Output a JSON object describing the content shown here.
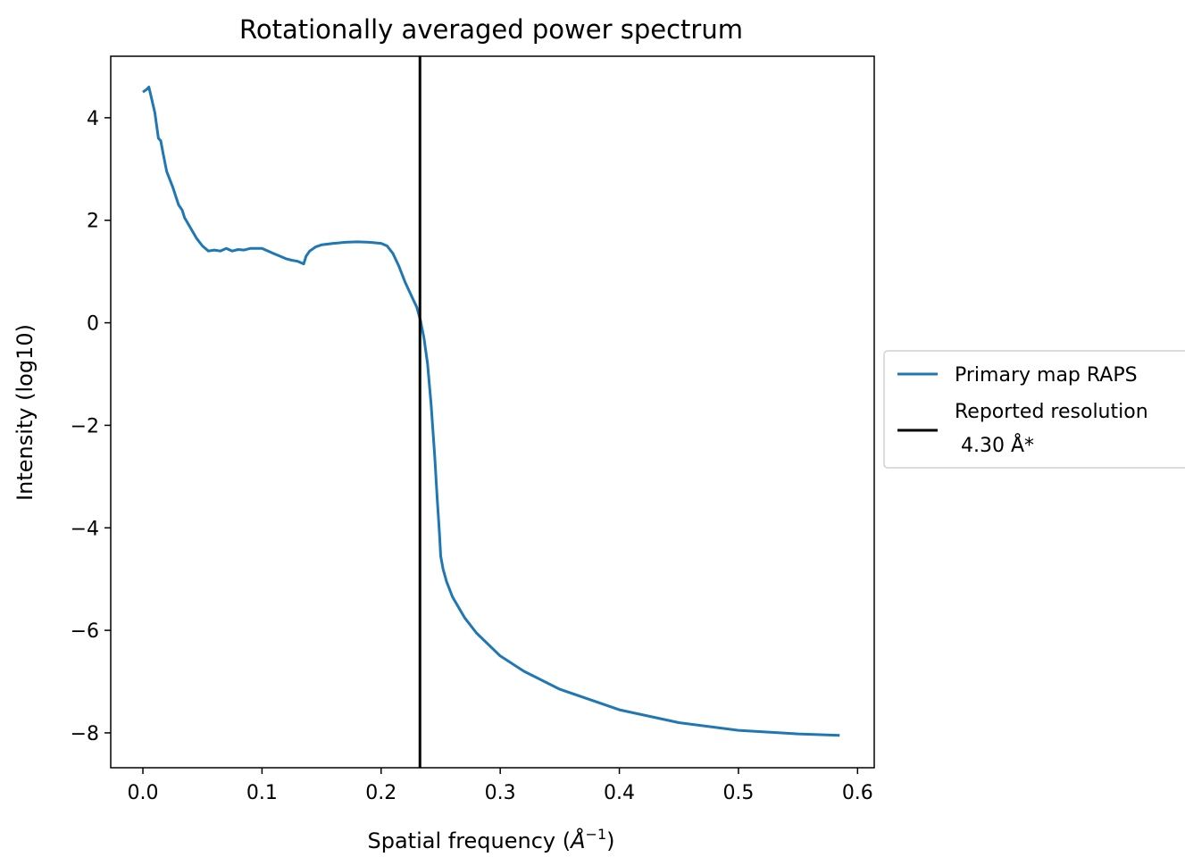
{
  "chart_data": {
    "type": "line",
    "title": "Rotationally averaged power spectrum",
    "xlabel": "Spatial frequency (",
    "xlabel_unit": "Å",
    "xlabel_exp": "−1",
    "xlabel_close": ")",
    "ylabel": "Intensity (log10)",
    "xlim": [
      -0.027,
      0.614
    ],
    "ylim": [
      -8.68,
      5.2
    ],
    "xticks": [
      0.0,
      0.1,
      0.2,
      0.3,
      0.4,
      0.5,
      0.6
    ],
    "xtick_labels": [
      "0.0",
      "0.1",
      "0.2",
      "0.3",
      "0.4",
      "0.5",
      "0.6"
    ],
    "yticks": [
      4,
      2,
      0,
      -2,
      -4,
      -6,
      -8
    ],
    "ytick_labels": [
      "4",
      "2",
      "0",
      "−2",
      "−4",
      "−6",
      "−8"
    ],
    "grid": false,
    "legend_position": "outside-right",
    "series": [
      {
        "name": "Primary map RAPS",
        "color": "#1f77b4",
        "x": [
          0.0,
          0.003,
          0.005,
          0.007,
          0.01,
          0.013,
          0.015,
          0.017,
          0.02,
          0.025,
          0.03,
          0.033,
          0.035,
          0.04,
          0.045,
          0.05,
          0.055,
          0.06,
          0.065,
          0.07,
          0.075,
          0.08,
          0.085,
          0.09,
          0.1,
          0.11,
          0.115,
          0.12,
          0.125,
          0.13,
          0.135,
          0.137,
          0.14,
          0.145,
          0.15,
          0.16,
          0.17,
          0.18,
          0.19,
          0.2,
          0.205,
          0.21,
          0.215,
          0.22,
          0.225,
          0.23,
          0.233,
          0.236,
          0.239,
          0.242,
          0.245,
          0.247,
          0.249,
          0.25,
          0.252,
          0.255,
          0.26,
          0.27,
          0.28,
          0.3,
          0.32,
          0.35,
          0.4,
          0.45,
          0.5,
          0.55,
          0.585
        ],
        "y": [
          4.5,
          4.55,
          4.6,
          4.4,
          4.1,
          3.6,
          3.55,
          3.3,
          2.95,
          2.65,
          2.3,
          2.2,
          2.05,
          1.85,
          1.65,
          1.5,
          1.4,
          1.42,
          1.4,
          1.45,
          1.4,
          1.43,
          1.42,
          1.45,
          1.45,
          1.35,
          1.3,
          1.25,
          1.22,
          1.2,
          1.15,
          1.3,
          1.4,
          1.48,
          1.52,
          1.55,
          1.57,
          1.58,
          1.57,
          1.55,
          1.5,
          1.35,
          1.1,
          0.8,
          0.55,
          0.3,
          0.05,
          -0.3,
          -0.8,
          -1.6,
          -2.6,
          -3.4,
          -4.1,
          -4.55,
          -4.8,
          -5.05,
          -5.35,
          -5.75,
          -6.05,
          -6.5,
          -6.8,
          -7.15,
          -7.55,
          -7.8,
          -7.95,
          -8.02,
          -8.05
        ]
      },
      {
        "name": "Reported resolution",
        "name_line2": "4.30 Å*",
        "color": "#000000",
        "vline_x": 0.2326
      }
    ]
  }
}
